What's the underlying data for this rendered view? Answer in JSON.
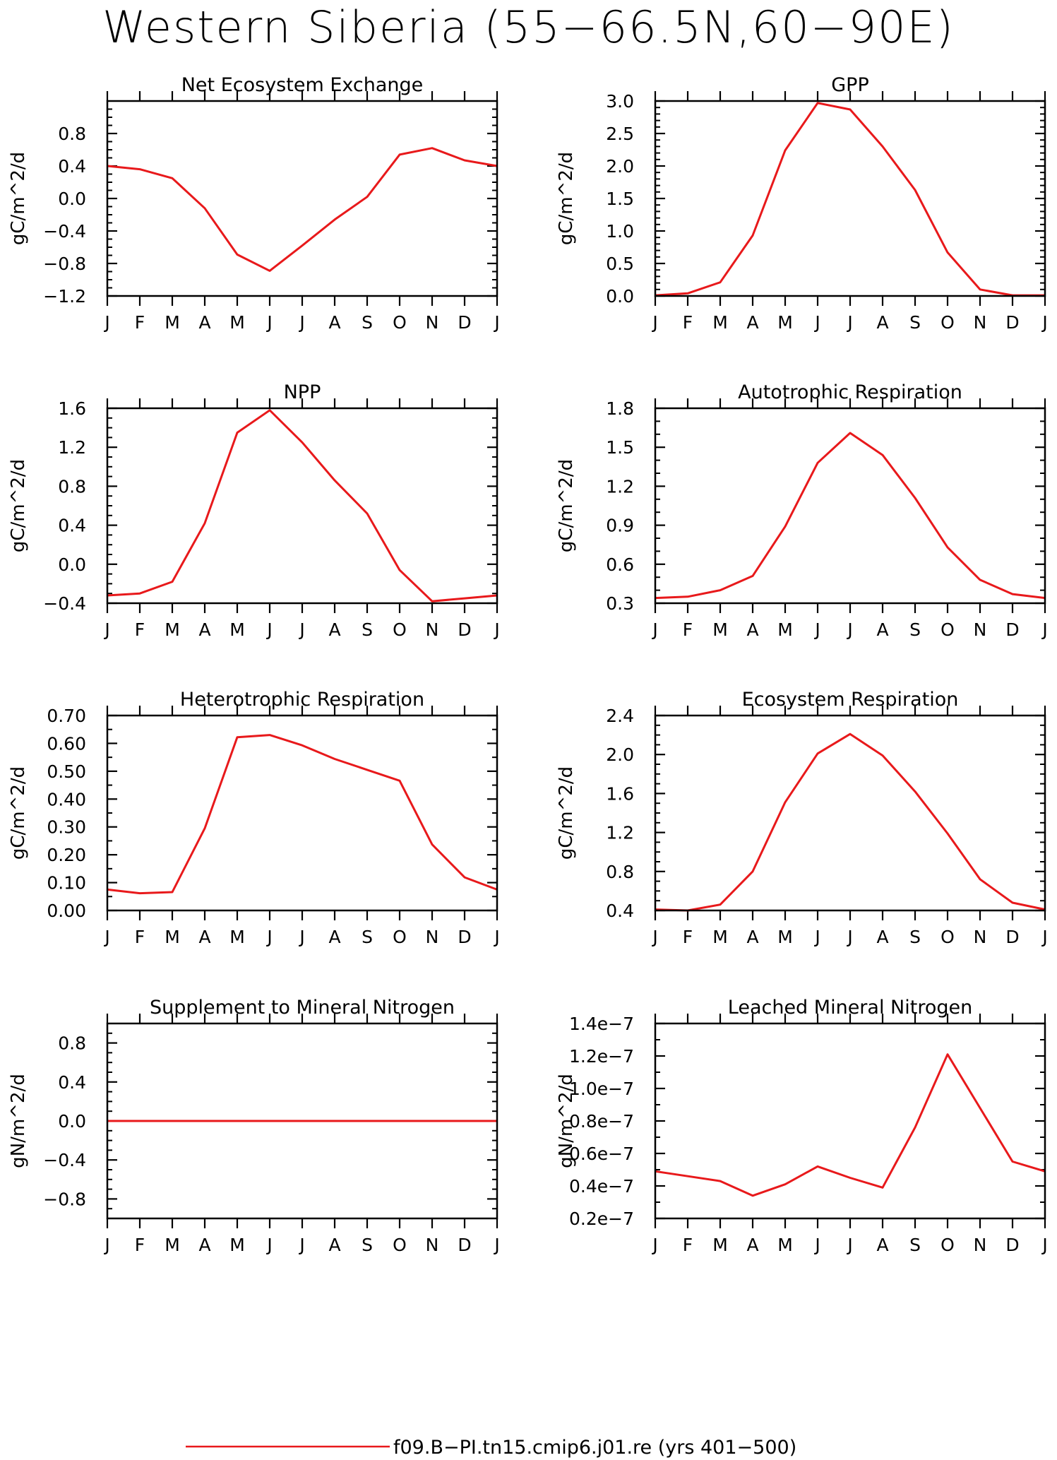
{
  "title": "Western Siberia (55−66.5N,60−90E)",
  "legend": {
    "label": "f09.B−PI.tn15.cmip6.j01.re (yrs 401−500)",
    "color": "#e8191b"
  },
  "month_labels": [
    "J",
    "F",
    "M",
    "A",
    "M",
    "J",
    "J",
    "A",
    "S",
    "O",
    "N",
    "D",
    "J"
  ],
  "chart_data": [
    {
      "type": "line",
      "title": "Net Ecosystem Exchange",
      "ylabel": "gC/m^2/d",
      "x": [
        "J",
        "F",
        "M",
        "A",
        "M",
        "J",
        "J",
        "A",
        "S",
        "O",
        "N",
        "D",
        "J"
      ],
      "values": [
        0.4,
        0.36,
        0.25,
        -0.12,
        -0.69,
        -0.89,
        -0.58,
        -0.26,
        0.02,
        0.54,
        0.62,
        0.47,
        0.4
      ],
      "ylim": [
        -1.2,
        1.2
      ],
      "yticks": [
        "-1.2",
        "-0.8",
        "-0.4",
        "0.0",
        "0.4",
        "0.8"
      ],
      "ytick_values": [
        -1.2,
        -0.8,
        -0.4,
        0.0,
        0.4,
        0.8
      ],
      "minor_step": 0.1
    },
    {
      "type": "line",
      "title": "GPP",
      "ylabel": "gC/m^2/d",
      "x": [
        "J",
        "F",
        "M",
        "A",
        "M",
        "J",
        "J",
        "A",
        "S",
        "O",
        "N",
        "D",
        "J"
      ],
      "values": [
        0.01,
        0.04,
        0.21,
        0.93,
        2.24,
        2.97,
        2.87,
        2.3,
        1.63,
        0.67,
        0.1,
        0.01,
        0.01
      ],
      "ylim": [
        0.0,
        3.0
      ],
      "yticks": [
        "0.0",
        "0.5",
        "1.0",
        "1.5",
        "2.0",
        "2.5",
        "3.0"
      ],
      "ytick_values": [
        0.0,
        0.5,
        1.0,
        1.5,
        2.0,
        2.5,
        3.0
      ],
      "minor_step": 0.1
    },
    {
      "type": "line",
      "title": "NPP",
      "ylabel": "gC/m^2/d",
      "x": [
        "J",
        "F",
        "M",
        "A",
        "M",
        "J",
        "J",
        "A",
        "S",
        "O",
        "N",
        "D",
        "J"
      ],
      "values": [
        -0.32,
        -0.3,
        -0.18,
        0.42,
        1.35,
        1.58,
        1.25,
        0.86,
        0.52,
        -0.06,
        -0.38,
        -0.35,
        -0.32
      ],
      "ylim": [
        -0.4,
        1.6
      ],
      "yticks": [
        "-0.4",
        "0.0",
        "0.4",
        "0.8",
        "1.2",
        "1.6"
      ],
      "ytick_values": [
        -0.4,
        0.0,
        0.4,
        0.8,
        1.2,
        1.6
      ],
      "minor_step": 0.1
    },
    {
      "type": "line",
      "title": "Autotrophic Respiration",
      "ylabel": "gC/m^2/d",
      "x": [
        "J",
        "F",
        "M",
        "A",
        "M",
        "J",
        "J",
        "A",
        "S",
        "O",
        "N",
        "D",
        "J"
      ],
      "values": [
        0.34,
        0.35,
        0.4,
        0.51,
        0.89,
        1.38,
        1.61,
        1.44,
        1.11,
        0.73,
        0.48,
        0.37,
        0.34
      ],
      "ylim": [
        0.3,
        1.8
      ],
      "yticks": [
        "0.3",
        "0.6",
        "0.9",
        "1.2",
        "1.5",
        "1.8"
      ],
      "ytick_values": [
        0.3,
        0.6,
        0.9,
        1.2,
        1.5,
        1.8
      ],
      "minor_step": 0.1
    },
    {
      "type": "line",
      "title": "Heterotrophic Respiration",
      "ylabel": "gC/m^2/d",
      "x": [
        "J",
        "F",
        "M",
        "A",
        "M",
        "J",
        "J",
        "A",
        "S",
        "O",
        "N",
        "D",
        "J"
      ],
      "values": [
        0.075,
        0.062,
        0.066,
        0.295,
        0.622,
        0.63,
        0.593,
        0.544,
        0.505,
        0.466,
        0.237,
        0.119,
        0.075
      ],
      "ylim": [
        0.0,
        0.7
      ],
      "yticks": [
        "0.00",
        "0.10",
        "0.20",
        "0.30",
        "0.40",
        "0.50",
        "0.60",
        "0.70"
      ],
      "ytick_values": [
        0.0,
        0.1,
        0.2,
        0.3,
        0.4,
        0.5,
        0.6,
        0.7
      ],
      "minor_step": 0.05
    },
    {
      "type": "line",
      "title": "Ecosystem Respiration",
      "ylabel": "gC/m^2/d",
      "x": [
        "J",
        "F",
        "M",
        "A",
        "M",
        "J",
        "J",
        "A",
        "S",
        "O",
        "N",
        "D",
        "J"
      ],
      "values": [
        0.41,
        0.4,
        0.46,
        0.8,
        1.51,
        2.01,
        2.21,
        1.99,
        1.62,
        1.19,
        0.72,
        0.48,
        0.41
      ],
      "ylim": [
        0.4,
        2.4
      ],
      "yticks": [
        "0.4",
        "0.8",
        "1.2",
        "1.6",
        "2.0",
        "2.4"
      ],
      "ytick_values": [
        0.4,
        0.8,
        1.2,
        1.6,
        2.0,
        2.4
      ],
      "minor_step": 0.1
    },
    {
      "type": "line",
      "title": "Supplement to Mineral Nitrogen",
      "ylabel": "gN/m^2/d",
      "x": [
        "J",
        "F",
        "M",
        "A",
        "M",
        "J",
        "J",
        "A",
        "S",
        "O",
        "N",
        "D",
        "J"
      ],
      "values": [
        0,
        0,
        0,
        0,
        0,
        0,
        0,
        0,
        0,
        0,
        0,
        0,
        0
      ],
      "ylim": [
        -1.0,
        1.0
      ],
      "yticks": [
        "-0.8",
        "-0.4",
        "0.0",
        "0.4",
        "0.8"
      ],
      "ytick_values": [
        -0.8,
        -0.4,
        0.0,
        0.4,
        0.8
      ],
      "minor_step": 0.1
    },
    {
      "type": "line",
      "title": "Leached Mineral Nitrogen",
      "ylabel": "gN/m^2/d",
      "x": [
        "J",
        "F",
        "M",
        "A",
        "M",
        "J",
        "J",
        "A",
        "S",
        "O",
        "N",
        "D",
        "J"
      ],
      "values": [
        4.9e-08,
        4.6e-08,
        4.3e-08,
        3.4e-08,
        4.1e-08,
        5.2e-08,
        4.5e-08,
        3.9e-08,
        7.6e-08,
        1.21e-07,
        8.8e-08,
        5.5e-08,
        4.9e-08
      ],
      "ylim": [
        2e-08,
        1.4e-07
      ],
      "yticks": [
        "0.2e−7",
        "0.4e−7",
        "0.6e−7",
        "0.8e−7",
        "1.0e−7",
        "1.2e−7",
        "1.4e−7"
      ],
      "ytick_values": [
        2e-08,
        4e-08,
        6e-08,
        8e-08,
        1e-07,
        1.2e-07,
        1.4e-07
      ],
      "minor_step": 1e-08
    }
  ]
}
